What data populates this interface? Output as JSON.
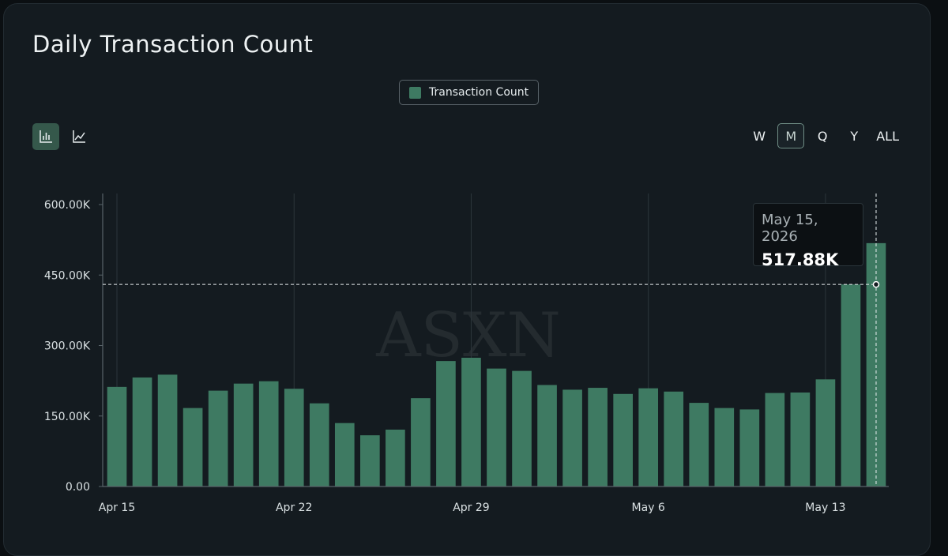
{
  "title": "Daily Transaction Count",
  "legend": {
    "label": "Transaction Count",
    "color": "#3e7a62"
  },
  "chart_types": [
    {
      "name": "bar",
      "icon": "bar-chart-icon",
      "active": true
    },
    {
      "name": "line",
      "icon": "line-chart-icon",
      "active": false
    }
  ],
  "ranges": [
    {
      "label": "W",
      "active": false
    },
    {
      "label": "M",
      "active": true
    },
    {
      "label": "Q",
      "active": false
    },
    {
      "label": "Y",
      "active": false
    },
    {
      "label": "ALL",
      "active": false
    }
  ],
  "watermark": "ASXN",
  "tooltip": {
    "date": "May 15, 2026",
    "value": "517.88K"
  },
  "chart_data": {
    "type": "bar",
    "title": "Daily Transaction Count",
    "series": [
      {
        "name": "Transaction Count",
        "values": [
          212000,
          232000,
          238000,
          167000,
          204000,
          219000,
          224000,
          208000,
          177000,
          135000,
          109000,
          121000,
          188000,
          267000,
          274000,
          251000,
          246000,
          216000,
          206000,
          210000,
          197000,
          209000,
          202000,
          178000,
          167000,
          164000,
          199000,
          200000,
          228000,
          430000,
          517880
        ]
      }
    ],
    "x_tick_labels": [
      "Apr 15",
      "Apr 22",
      "Apr 29",
      "May 6",
      "May 13"
    ],
    "x_tick_indices": [
      0,
      7,
      14,
      21,
      28
    ],
    "yticks": [
      0,
      150000,
      300000,
      450000,
      600000
    ],
    "ytick_labels": [
      "0.00",
      "150.00K",
      "300.00K",
      "450.00K",
      "600.00K"
    ],
    "ylim": [
      0,
      600000
    ],
    "grid": "vertical",
    "crosshair": {
      "index": 30,
      "y": 430000
    }
  }
}
